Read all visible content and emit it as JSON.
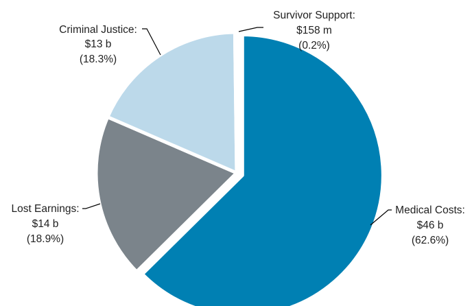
{
  "chart_data": {
    "type": "pie",
    "title": "",
    "legend": "none",
    "unit": "USD",
    "slices": [
      {
        "name": "Medical Costs",
        "value": 46,
        "value_label": "$46 b",
        "percent": 62.6,
        "percent_label": "(62.6%)",
        "color": "#0080b3"
      },
      {
        "name": "Lost Earnings",
        "value": 14,
        "value_label": "$14 b",
        "percent": 18.9,
        "percent_label": "(18.9%)",
        "color": "#7b848b"
      },
      {
        "name": "Criminal Justice",
        "value": 13,
        "value_label": "$13 b",
        "percent": 18.3,
        "percent_label": "(18.3%)",
        "color": "#bcd9ea"
      },
      {
        "name": "Survivor Support",
        "value": 0.158,
        "value_label": "$158 m",
        "percent": 0.2,
        "percent_label": "(0.2%)",
        "color": "#0080b3"
      }
    ]
  },
  "labels": {
    "medical": {
      "name": "Medical Costs:",
      "value": "$46 b",
      "percent": "(62.6%)"
    },
    "lost": {
      "name": "Lost Earnings:",
      "value": "$14 b",
      "percent": "(18.9%)"
    },
    "criminal": {
      "name": "Criminal Justice:",
      "value": "$13 b",
      "percent": "(18.3%)"
    },
    "survivor": {
      "name": "Survivor Support:",
      "value": "$158 m",
      "percent": "(0.2%)"
    }
  }
}
